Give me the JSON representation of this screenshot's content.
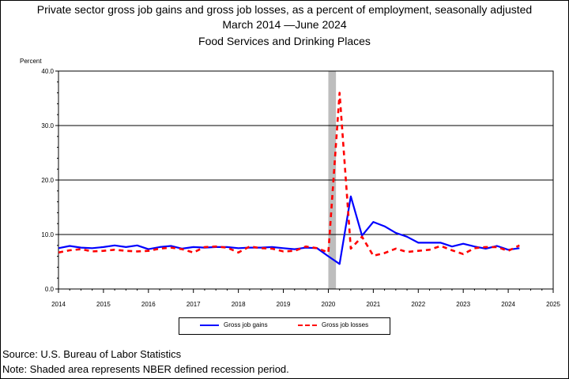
{
  "title_line1": "Private sector gross job gains and gross job losses, as a percent of employment, seasonally adjusted",
  "title_line2": "March 2014 —June 2024",
  "title_line3": "Food Services and Drinking Places",
  "footer_source": "Source: U.S. Bureau of Labor Statistics",
  "footer_note": "Note: Shaded area represents NBER defined recession period.",
  "chart_data": {
    "type": "line",
    "ylabel": "Percent",
    "ylim": [
      0,
      40
    ],
    "yticks": [
      "0.0",
      "10.0",
      "20.0",
      "30.0",
      "40.0"
    ],
    "xlim": [
      2014,
      2025
    ],
    "xticks": [
      "2014",
      "2015",
      "2016",
      "2017",
      "2018",
      "2019",
      "2020",
      "2021",
      "2022",
      "2023",
      "2024",
      "2025"
    ],
    "grid": "horizontal",
    "legend_position": "bottom",
    "recession": {
      "start": 2020.0,
      "end": 2020.17
    },
    "x": [
      2014.0,
      2014.25,
      2014.5,
      2014.75,
      2015.0,
      2015.25,
      2015.5,
      2015.75,
      2016.0,
      2016.25,
      2016.5,
      2016.75,
      2017.0,
      2017.25,
      2017.5,
      2017.75,
      2018.0,
      2018.25,
      2018.5,
      2018.75,
      2019.0,
      2019.25,
      2019.5,
      2019.75,
      2020.0,
      2020.25,
      2020.5,
      2020.75,
      2021.0,
      2021.25,
      2021.5,
      2021.75,
      2022.0,
      2022.25,
      2022.5,
      2022.75,
      2023.0,
      2023.25,
      2023.5,
      2023.75,
      2024.0,
      2024.25
    ],
    "series": [
      {
        "name": "Gross job gains",
        "color": "#0000ff",
        "dash": "solid",
        "values": [
          7.5,
          7.9,
          7.6,
          7.5,
          7.7,
          8.0,
          7.7,
          8.0,
          7.3,
          7.7,
          7.9,
          7.4,
          7.7,
          7.6,
          7.7,
          7.7,
          7.5,
          7.6,
          7.6,
          7.7,
          7.5,
          7.3,
          7.6,
          7.5,
          6.0,
          4.6,
          17.0,
          9.8,
          12.3,
          11.5,
          10.3,
          9.6,
          8.5,
          8.5,
          8.5,
          7.8,
          8.3,
          7.8,
          7.4,
          7.9,
          7.2,
          7.5
        ]
      },
      {
        "name": "Gross job losses",
        "color": "#ff0000",
        "dash": "dashed",
        "values": [
          6.7,
          7.1,
          7.3,
          6.9,
          7.0,
          7.2,
          7.0,
          6.9,
          7.0,
          7.4,
          7.6,
          7.3,
          6.7,
          7.7,
          7.8,
          7.6,
          6.7,
          7.8,
          7.5,
          7.4,
          6.9,
          7.0,
          7.8,
          7.5,
          6.7,
          36.0,
          7.4,
          9.6,
          6.1,
          6.6,
          7.4,
          6.8,
          7.0,
          7.2,
          7.9,
          7.1,
          6.4,
          7.5,
          7.7,
          7.7,
          7.0,
          8.0
        ]
      }
    ]
  }
}
